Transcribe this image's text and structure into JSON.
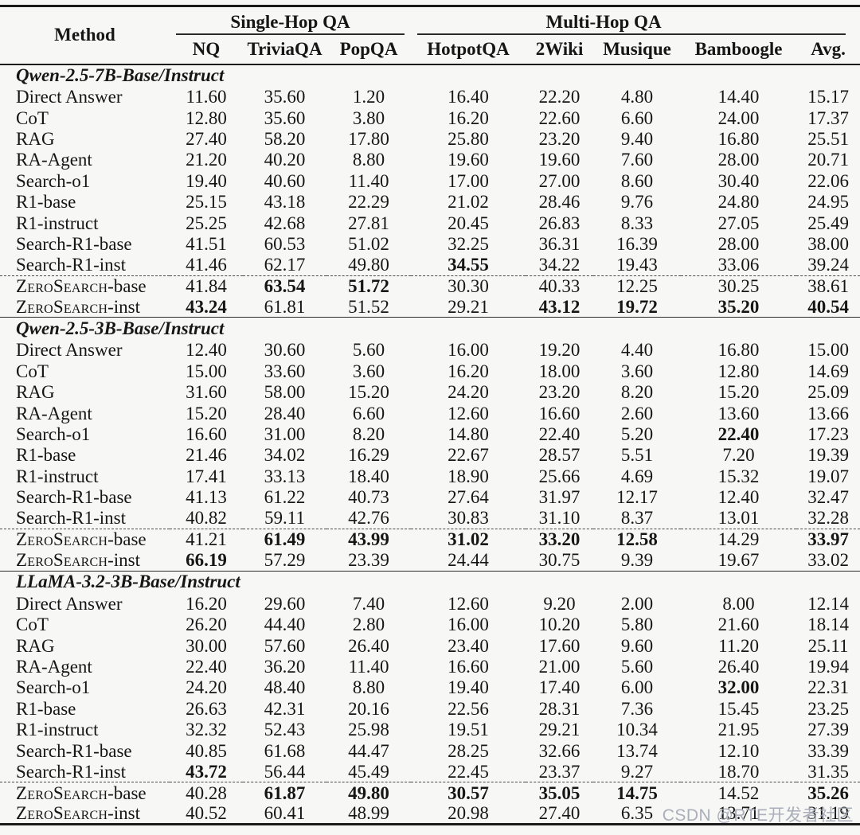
{
  "watermark": "CSDN @RTE开发者社区",
  "table": {
    "method_header": "Method",
    "groups": {
      "single_hop": "Single-Hop QA",
      "multi_hop": "Multi-Hop QA"
    },
    "columns": [
      "NQ",
      "TriviaQA",
      "PopQA",
      "HotpotQA",
      "2Wiki",
      "Musique",
      "Bamboogle",
      "Avg."
    ],
    "sections": [
      {
        "title": "Qwen-2.5-7B-Base/Instruct",
        "rows": [
          {
            "method": "Direct Answer",
            "v": [
              "11.60",
              "35.60",
              "1.20",
              "16.40",
              "22.20",
              "4.80",
              "14.40",
              "15.17"
            ],
            "b": []
          },
          {
            "method": "CoT",
            "v": [
              "12.80",
              "35.60",
              "3.80",
              "16.20",
              "22.60",
              "6.60",
              "24.00",
              "17.37"
            ],
            "b": []
          },
          {
            "method": "RAG",
            "v": [
              "27.40",
              "58.20",
              "17.80",
              "25.80",
              "23.20",
              "9.40",
              "16.80",
              "25.51"
            ],
            "b": []
          },
          {
            "method": "RA-Agent",
            "v": [
              "21.20",
              "40.20",
              "8.80",
              "19.60",
              "19.60",
              "7.60",
              "28.00",
              "20.71"
            ],
            "b": []
          },
          {
            "method": "Search-o1",
            "v": [
              "19.40",
              "40.60",
              "11.40",
              "17.00",
              "27.00",
              "8.60",
              "30.40",
              "22.06"
            ],
            "b": []
          },
          {
            "method": "R1-base",
            "v": [
              "25.15",
              "43.18",
              "22.29",
              "21.02",
              "28.46",
              "9.76",
              "24.80",
              "24.95"
            ],
            "b": []
          },
          {
            "method": "R1-instruct",
            "v": [
              "25.25",
              "42.68",
              "27.81",
              "20.45",
              "26.83",
              "8.33",
              "27.05",
              "25.49"
            ],
            "b": []
          },
          {
            "method": "Search-R1-base",
            "v": [
              "41.51",
              "60.53",
              "51.02",
              "32.25",
              "36.31",
              "16.39",
              "28.00",
              "38.00"
            ],
            "b": []
          },
          {
            "method": "Search-R1-inst",
            "v": [
              "41.46",
              "62.17",
              "49.80",
              "34.55",
              "34.22",
              "19.43",
              "33.06",
              "39.24"
            ],
            "b": [
              3
            ]
          },
          {
            "method": "ZeroSearch-base",
            "sc": true,
            "dashed": true,
            "v": [
              "41.84",
              "63.54",
              "51.72",
              "30.30",
              "40.33",
              "12.25",
              "30.25",
              "38.61"
            ],
            "b": [
              1,
              2
            ]
          },
          {
            "method": "ZeroSearch-inst",
            "sc": true,
            "v": [
              "43.24",
              "61.81",
              "51.52",
              "29.21",
              "43.12",
              "19.72",
              "35.20",
              "40.54"
            ],
            "b": [
              0,
              4,
              5,
              6,
              7
            ]
          }
        ]
      },
      {
        "title": "Qwen-2.5-3B-Base/Instruct",
        "rows": [
          {
            "method": "Direct Answer",
            "v": [
              "12.40",
              "30.60",
              "5.60",
              "16.00",
              "19.20",
              "4.40",
              "16.80",
              "15.00"
            ],
            "b": []
          },
          {
            "method": "CoT",
            "v": [
              "15.00",
              "33.60",
              "3.60",
              "16.20",
              "18.00",
              "3.60",
              "12.80",
              "14.69"
            ],
            "b": []
          },
          {
            "method": "RAG",
            "v": [
              "31.60",
              "58.00",
              "15.20",
              "24.20",
              "23.20",
              "8.20",
              "15.20",
              "25.09"
            ],
            "b": []
          },
          {
            "method": "RA-Agent",
            "v": [
              "15.20",
              "28.40",
              "6.60",
              "12.60",
              "16.60",
              "2.60",
              "13.60",
              "13.66"
            ],
            "b": []
          },
          {
            "method": "Search-o1",
            "v": [
              "16.60",
              "31.00",
              "8.20",
              "14.80",
              "22.40",
              "5.20",
              "22.40",
              "17.23"
            ],
            "b": [
              6
            ]
          },
          {
            "method": "R1-base",
            "v": [
              "21.46",
              "34.02",
              "16.29",
              "22.67",
              "28.57",
              "5.51",
              "7.20",
              "19.39"
            ],
            "b": []
          },
          {
            "method": "R1-instruct",
            "v": [
              "17.41",
              "33.13",
              "18.40",
              "18.90",
              "25.66",
              "4.69",
              "15.32",
              "19.07"
            ],
            "b": []
          },
          {
            "method": "Search-R1-base",
            "v": [
              "41.13",
              "61.22",
              "40.73",
              "27.64",
              "31.97",
              "12.17",
              "12.40",
              "32.47"
            ],
            "b": []
          },
          {
            "method": "Search-R1-inst",
            "v": [
              "40.82",
              "59.11",
              "42.76",
              "30.83",
              "31.10",
              "8.37",
              "13.01",
              "32.28"
            ],
            "b": []
          },
          {
            "method": "ZeroSearch-base",
            "sc": true,
            "dashed": true,
            "v": [
              "41.21",
              "61.49",
              "43.99",
              "31.02",
              "33.20",
              "12.58",
              "14.29",
              "33.97"
            ],
            "b": [
              1,
              2,
              3,
              4,
              5,
              7
            ]
          },
          {
            "method": "ZeroSearch-inst",
            "sc": true,
            "v": [
              "66.19",
              "57.29",
              "23.39",
              "24.44",
              "30.75",
              "9.39",
              "19.67",
              "33.02"
            ],
            "b": [
              0
            ]
          }
        ]
      },
      {
        "title": "LLaMA-3.2-3B-Base/Instruct",
        "rows": [
          {
            "method": "Direct Answer",
            "v": [
              "16.20",
              "29.60",
              "7.40",
              "12.60",
              "9.20",
              "2.00",
              "8.00",
              "12.14"
            ],
            "b": []
          },
          {
            "method": "CoT",
            "v": [
              "26.20",
              "44.40",
              "2.80",
              "16.00",
              "10.20",
              "5.80",
              "21.60",
              "18.14"
            ],
            "b": []
          },
          {
            "method": "RAG",
            "v": [
              "30.00",
              "57.60",
              "26.40",
              "23.40",
              "17.60",
              "9.60",
              "11.20",
              "25.11"
            ],
            "b": []
          },
          {
            "method": "RA-Agent",
            "v": [
              "22.40",
              "36.20",
              "11.40",
              "16.60",
              "21.00",
              "5.60",
              "26.40",
              "19.94"
            ],
            "b": []
          },
          {
            "method": "Search-o1",
            "v": [
              "24.20",
              "48.40",
              "8.80",
              "19.40",
              "17.40",
              "6.00",
              "32.00",
              "22.31"
            ],
            "b": [
              6
            ]
          },
          {
            "method": "R1-base",
            "v": [
              "26.63",
              "42.31",
              "20.16",
              "22.56",
              "28.31",
              "7.36",
              "15.45",
              "23.25"
            ],
            "b": []
          },
          {
            "method": "R1-instruct",
            "v": [
              "32.32",
              "52.43",
              "25.98",
              "19.51",
              "29.21",
              "10.34",
              "21.95",
              "27.39"
            ],
            "b": []
          },
          {
            "method": "Search-R1-base",
            "v": [
              "40.85",
              "61.68",
              "44.47",
              "28.25",
              "32.66",
              "13.74",
              "12.10",
              "33.39"
            ],
            "b": []
          },
          {
            "method": "Search-R1-inst",
            "v": [
              "43.72",
              "56.44",
              "45.49",
              "22.45",
              "23.37",
              "9.27",
              "18.70",
              "31.35"
            ],
            "b": [
              0
            ]
          },
          {
            "method": "ZeroSearch-base",
            "sc": true,
            "dashed": true,
            "v": [
              "40.28",
              "61.87",
              "49.80",
              "30.57",
              "35.05",
              "14.75",
              "14.52",
              "35.26"
            ],
            "b": [
              1,
              2,
              3,
              4,
              5,
              7
            ]
          },
          {
            "method": "ZeroSearch-inst",
            "sc": true,
            "v": [
              "40.52",
              "60.41",
              "48.99",
              "20.98",
              "27.40",
              "6.35",
              "13.71",
              "31.19"
            ],
            "b": []
          }
        ]
      }
    ]
  }
}
